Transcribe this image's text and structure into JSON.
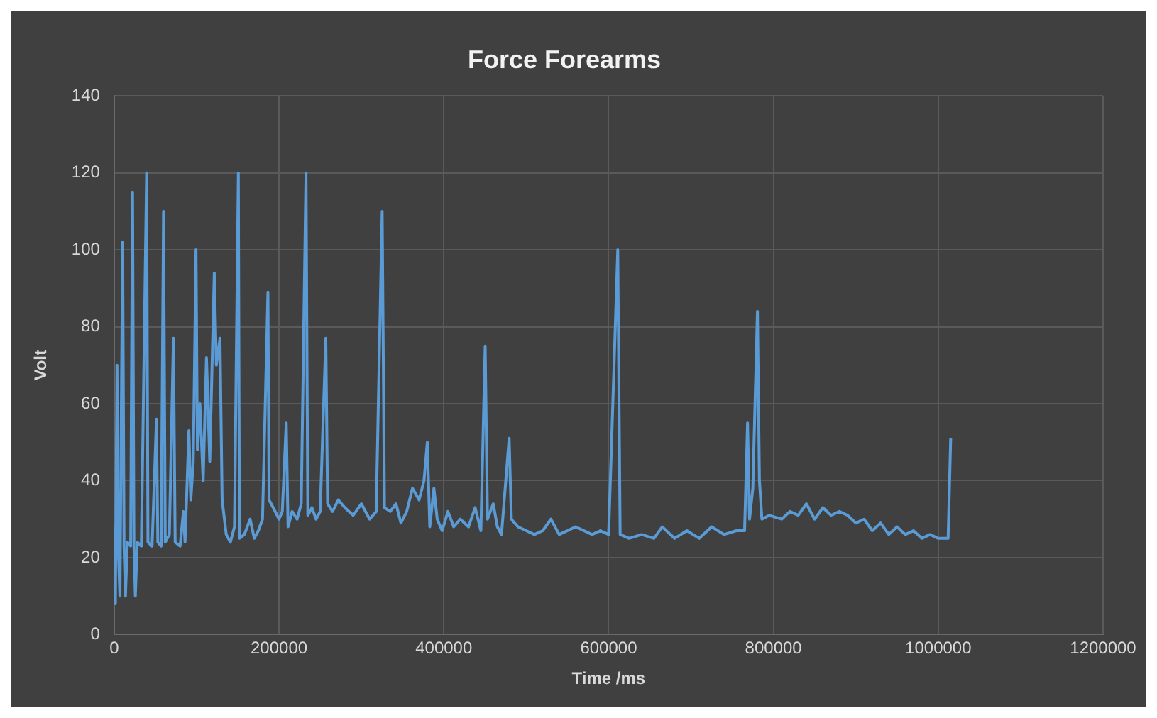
{
  "chart_data": {
    "type": "line",
    "title": "Force Forearms",
    "xlabel": "Time /ms",
    "ylabel": "Volt",
    "xlim": [
      0,
      1200000
    ],
    "xticks": [
      0,
      200000,
      400000,
      600000,
      800000,
      1000000,
      1200000
    ],
    "ylim": [
      0,
      140
    ],
    "yticks": [
      0,
      20,
      40,
      60,
      80,
      100,
      120,
      140
    ],
    "grid": true,
    "legend": false,
    "marker": "none",
    "line_style": "solid",
    "series": [
      {
        "color": "#5b9bd5",
        "x": [
          0,
          1500,
          3400,
          5000,
          7000,
          10300,
          12000,
          13700,
          16000,
          20000,
          22300,
          24000,
          25700,
          28000,
          33000,
          39400,
          41000,
          46000,
          51300,
          53000,
          57000,
          59900,
          62000,
          67000,
          71900,
          74000,
          80000,
          84000,
          86000,
          90700,
          93000,
          96000,
          99300,
          101000,
          104000,
          108000,
          112000,
          116000,
          121500,
          124000,
          128400,
          131000,
          136000,
          141000,
          146000,
          150700,
          152000,
          158000,
          165000,
          170000,
          175000,
          180000,
          186600,
          188000,
          193000,
          200000,
          204000,
          208800,
          211000,
          216000,
          222000,
          227000,
          232800,
          235000,
          240000,
          245000,
          250000,
          256800,
          259000,
          265000,
          272000,
          280000,
          290000,
          300000,
          310000,
          318000,
          325200,
          328000,
          335000,
          342000,
          348000,
          355000,
          362000,
          370000,
          376000,
          380000,
          383000,
          388000,
          392000,
          398000,
          405000,
          412000,
          420000,
          430000,
          438000,
          445000,
          450200,
          453000,
          460000,
          465000,
          470000,
          479300,
          482000,
          490000,
          500000,
          510000,
          520000,
          530000,
          540000,
          550000,
          560000,
          570000,
          580000,
          590000,
          600000,
          611100,
          614000,
          625000,
          640000,
          655000,
          665000,
          680000,
          695000,
          710000,
          725000,
          740000,
          755000,
          765000,
          768600,
          771000,
          775000,
          780600,
          783000,
          786000,
          795000,
          810000,
          820000,
          830000,
          840000,
          850000,
          860000,
          870000,
          880000,
          890000,
          900000,
          910000,
          920000,
          930000,
          940000,
          950000,
          960000,
          970000,
          980000,
          990000,
          1000000,
          1012000,
          1015100
        ],
        "values": [
          28,
          8,
          70,
          22,
          10,
          102,
          23,
          10,
          24,
          23,
          115,
          23,
          10,
          24,
          23,
          120,
          24,
          23,
          56,
          24,
          23,
          110,
          24,
          26,
          77,
          24,
          23,
          32,
          24,
          53,
          35,
          45,
          100,
          48,
          60,
          40,
          72,
          45,
          94,
          70,
          77,
          35,
          26,
          24,
          28,
          120,
          25,
          26,
          30,
          25,
          27,
          30,
          89,
          35,
          33,
          30,
          32,
          55,
          28,
          32,
          30,
          34,
          120,
          31,
          33,
          30,
          32,
          77,
          34,
          32,
          35,
          33,
          31,
          34,
          30,
          32,
          110,
          33,
          32,
          34,
          29,
          32,
          38,
          35,
          40,
          50,
          28,
          38,
          30,
          27,
          32,
          28,
          30,
          28,
          33,
          27,
          75,
          30,
          34,
          28,
          26,
          51,
          30,
          28,
          27,
          26,
          27,
          30,
          26,
          27,
          28,
          27,
          26,
          27,
          26,
          100,
          26,
          25,
          26,
          25,
          28,
          25,
          27,
          25,
          28,
          26,
          27,
          27,
          55,
          30,
          38,
          84,
          40,
          30,
          31,
          30,
          32,
          31,
          34,
          30,
          33,
          31,
          32,
          31,
          29,
          30,
          27,
          29,
          26,
          28,
          26,
          27,
          25,
          26,
          25,
          25,
          51
        ]
      }
    ]
  }
}
